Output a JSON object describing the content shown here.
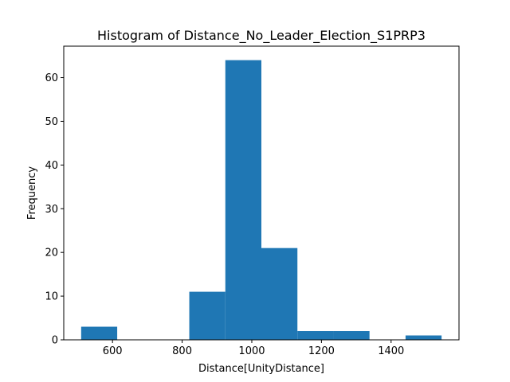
{
  "chart_data": {
    "type": "bar",
    "title": "Histogram of Distance_No_Leader_Election_S1PRP3",
    "xlabel": "Distance[UnityDistance]",
    "ylabel": "Frequency",
    "bin_edges": [
      510,
      613.5,
      717,
      820.5,
      924,
      1027.5,
      1131,
      1234.5,
      1338,
      1441.5,
      1545
    ],
    "values": [
      3,
      0,
      0,
      11,
      64,
      21,
      2,
      2,
      0,
      1
    ],
    "xlim": [
      460,
      1595
    ],
    "ylim": [
      0,
      67.2
    ],
    "x_ticks": [
      600,
      800,
      1000,
      1200,
      1400
    ],
    "y_ticks": [
      0,
      10,
      20,
      30,
      40,
      50,
      60
    ],
    "bar_color": "#1f77b4",
    "grid": false,
    "legend": "none"
  }
}
